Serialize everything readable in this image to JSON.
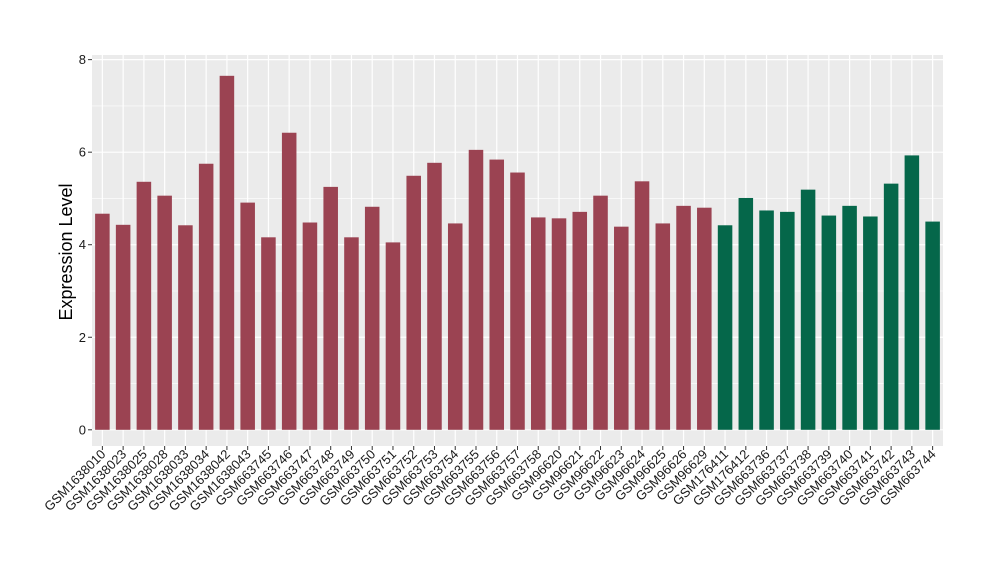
{
  "chart_data": {
    "type": "bar",
    "title": "",
    "xlabel": "",
    "ylabel": "Expression Level",
    "ylim": [
      -0.35,
      8.1
    ],
    "yticks": [
      0,
      2,
      4,
      6,
      8
    ],
    "grid": true,
    "legend": "none",
    "categories": [
      "GSM1638010",
      "GSM1638023",
      "GSM1638025",
      "GSM1638028",
      "GSM1638033",
      "GSM1638034",
      "GSM1638042",
      "GSM1638043",
      "GSM663745",
      "GSM663746",
      "GSM663747",
      "GSM663748",
      "GSM663749",
      "GSM663750",
      "GSM663751",
      "GSM663752",
      "GSM663753",
      "GSM663754",
      "GSM663755",
      "GSM663756",
      "GSM663757",
      "GSM663758",
      "GSM96620",
      "GSM96621",
      "GSM96622",
      "GSM96623",
      "GSM96624",
      "GSM96625",
      "GSM96626",
      "GSM96629",
      "GSM176411",
      "GSM176412",
      "GSM663736",
      "GSM663737",
      "GSM663738",
      "GSM663739",
      "GSM663740",
      "GSM663741",
      "GSM663742",
      "GSM663743",
      "GSM663744"
    ],
    "values": [
      4.67,
      4.43,
      5.36,
      5.06,
      4.42,
      5.75,
      7.65,
      4.91,
      4.16,
      6.42,
      4.48,
      5.25,
      4.16,
      4.82,
      4.05,
      5.49,
      5.77,
      4.46,
      6.05,
      5.84,
      5.56,
      4.59,
      4.57,
      4.71,
      5.06,
      4.39,
      5.37,
      4.46,
      4.84,
      4.8,
      4.42,
      5.01,
      4.74,
      4.71,
      5.19,
      4.63,
      4.84,
      4.61,
      5.32,
      5.93,
      4.5
    ],
    "bar_colors": [
      "#9b4352",
      "#9b4352",
      "#9b4352",
      "#9b4352",
      "#9b4352",
      "#9b4352",
      "#9b4352",
      "#9b4352",
      "#9b4352",
      "#9b4352",
      "#9b4352",
      "#9b4352",
      "#9b4352",
      "#9b4352",
      "#9b4352",
      "#9b4352",
      "#9b4352",
      "#9b4352",
      "#9b4352",
      "#9b4352",
      "#9b4352",
      "#9b4352",
      "#9b4352",
      "#9b4352",
      "#9b4352",
      "#9b4352",
      "#9b4352",
      "#9b4352",
      "#9b4352",
      "#9b4352",
      "#05674a",
      "#05674a",
      "#05674a",
      "#05674a",
      "#05674a",
      "#05674a",
      "#05674a",
      "#05674a",
      "#05674a",
      "#05674a",
      "#05674a"
    ],
    "panel_background": "#ebebeb",
    "gridline_color": "#ffffff"
  }
}
